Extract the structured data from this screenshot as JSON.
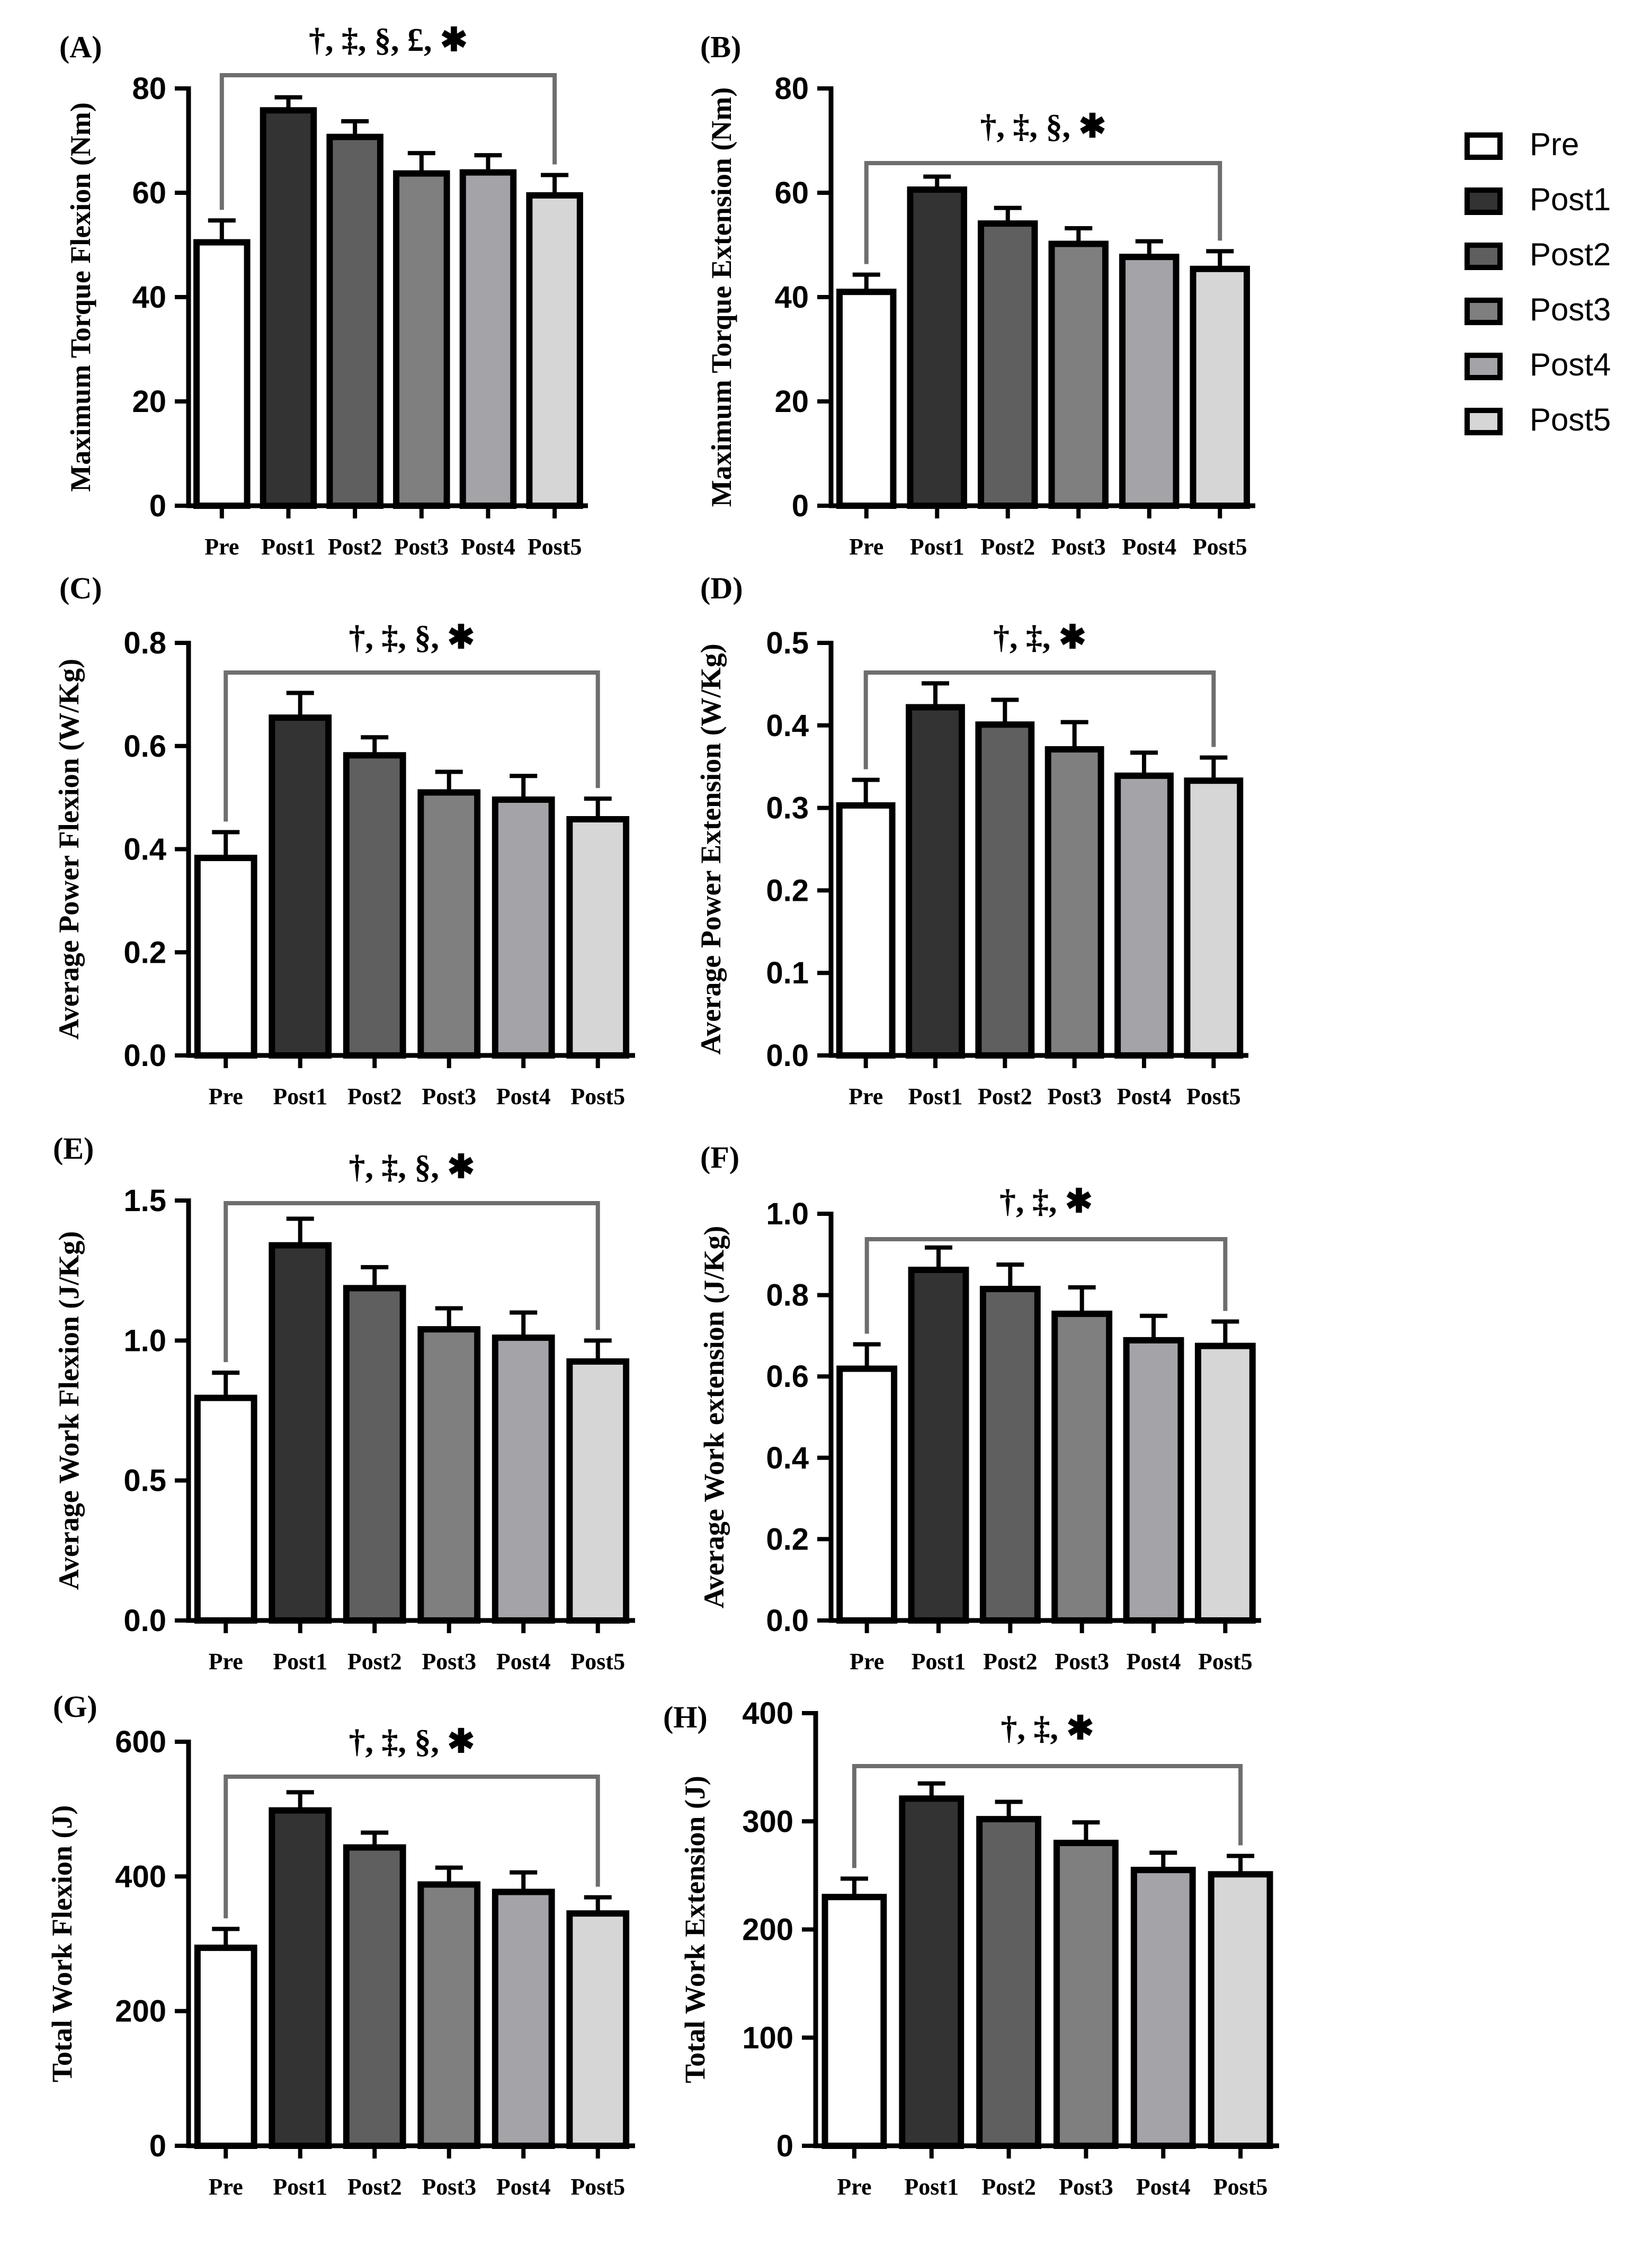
{
  "categories": [
    "Pre",
    "Post1",
    "Post2",
    "Post3",
    "Post4",
    "Post5"
  ],
  "colors": {
    "Pre": "#ffffff",
    "Post1": "#333333",
    "Post2": "#5f5f5f",
    "Post3": "#7f7f7f",
    "Post4": "#a3a3a8",
    "Post5": "#d6d6d6",
    "stroke": "#000000",
    "bracket": "#6e6e6e"
  },
  "legend": {
    "placement": "top-right",
    "entries": [
      "Pre",
      "Post1",
      "Post2",
      "Post3",
      "Post4",
      "Post5"
    ]
  },
  "chart_data": [
    {
      "type": "bar",
      "panel_label": "(A)",
      "ylabel": "Maximum Torque Flexion (Nm)",
      "ylim": [
        0,
        80
      ],
      "yticks": [
        "0",
        "20",
        "40",
        "60",
        "80"
      ],
      "yticks_values": [
        0,
        20,
        40,
        60,
        80
      ],
      "categories": [
        "Pre",
        "Post1",
        "Post2",
        "Post3",
        "Post4",
        "Post5"
      ],
      "values": [
        50.5,
        75.8,
        70.7,
        63.7,
        63.9,
        59.5
      ],
      "errors": [
        4.2,
        2.5,
        3.0,
        3.9,
        3.3,
        3.9
      ],
      "significance": "†, ‡, §, £, ✱",
      "bracket_from": "Pre",
      "bracket_to": "Post5"
    },
    {
      "type": "bar",
      "panel_label": "(B)",
      "ylabel": "Maximum Torque Extension (Nm)",
      "ylim": [
        0,
        80
      ],
      "yticks": [
        "0",
        "20",
        "40",
        "60",
        "80"
      ],
      "yticks_values": [
        0,
        20,
        40,
        60,
        80
      ],
      "categories": [
        "Pre",
        "Post1",
        "Post2",
        "Post3",
        "Post4",
        "Post5"
      ],
      "values": [
        41.0,
        60.6,
        54.1,
        50.2,
        47.7,
        45.4
      ],
      "errors": [
        3.3,
        2.5,
        3.0,
        3.0,
        3.0,
        3.4
      ],
      "significance": "†, ‡, §, ✱",
      "bracket_from": "Pre",
      "bracket_to": "Post5"
    },
    {
      "type": "bar",
      "panel_label": "(C)",
      "ylabel": "Average Power Flexion (W/Kg)",
      "ylim": [
        0,
        0.8
      ],
      "yticks": [
        "0.0",
        "0.2",
        "0.4",
        "0.6",
        "0.8"
      ],
      "yticks_values": [
        0,
        0.2,
        0.4,
        0.6,
        0.8
      ],
      "categories": [
        "Pre",
        "Post1",
        "Post2",
        "Post3",
        "Post4",
        "Post5"
      ],
      "values": [
        0.383,
        0.655,
        0.582,
        0.51,
        0.496,
        0.458
      ],
      "errors": [
        0.05,
        0.048,
        0.035,
        0.04,
        0.046,
        0.04
      ],
      "significance": "†, ‡, §, ✱",
      "bracket_from": "Pre",
      "bracket_to": "Post5"
    },
    {
      "type": "bar",
      "panel_label": "(D)",
      "ylabel": "Average Power Extension (W/Kg)",
      "ylim": [
        0,
        0.5
      ],
      "yticks": [
        "0.0",
        "0.1",
        "0.2",
        "0.3",
        "0.4",
        "0.5"
      ],
      "yticks_values": [
        0,
        0.1,
        0.2,
        0.3,
        0.4,
        0.5
      ],
      "categories": [
        "Pre",
        "Post1",
        "Post2",
        "Post3",
        "Post4",
        "Post5"
      ],
      "values": [
        0.303,
        0.422,
        0.401,
        0.371,
        0.339,
        0.333
      ],
      "errors": [
        0.031,
        0.029,
        0.03,
        0.033,
        0.028,
        0.028
      ],
      "significance": "†, ‡, ✱",
      "bracket_from": "Pre",
      "bracket_to": "Post5"
    },
    {
      "type": "bar",
      "panel_label": "(E)",
      "ylabel": "Average Work Flexion (J/Kg)",
      "ylim": [
        0,
        1.5
      ],
      "yticks": [
        "0.0",
        "0.5",
        "1.0",
        "1.5"
      ],
      "yticks_values": [
        0,
        0.5,
        1.0,
        1.5
      ],
      "categories": [
        "Pre",
        "Post1",
        "Post2",
        "Post3",
        "Post4",
        "Post5"
      ],
      "values": [
        0.795,
        1.34,
        1.187,
        1.04,
        1.01,
        0.925
      ],
      "errors": [
        0.09,
        0.095,
        0.075,
        0.075,
        0.09,
        0.075
      ],
      "significance": "†, ‡, §, ✱",
      "bracket_from": "Pre",
      "bracket_to": "Post5"
    },
    {
      "type": "bar",
      "panel_label": "(F)",
      "ylabel": "Average Work extension (J/Kg)",
      "ylim": [
        0,
        1.0
      ],
      "yticks": [
        "0.0",
        "0.2",
        "0.4",
        "0.6",
        "0.8",
        "1.0"
      ],
      "yticks_values": [
        0,
        0.2,
        0.4,
        0.6,
        0.8,
        1.0
      ],
      "categories": [
        "Pre",
        "Post1",
        "Post2",
        "Post3",
        "Post4",
        "Post5"
      ],
      "values": [
        0.619,
        0.862,
        0.815,
        0.754,
        0.689,
        0.675
      ],
      "errors": [
        0.06,
        0.055,
        0.06,
        0.065,
        0.06,
        0.06
      ],
      "significance": "†, ‡, ✱",
      "bracket_from": "Pre",
      "bracket_to": "Post5"
    },
    {
      "type": "bar",
      "panel_label": "(G)",
      "ylabel": "Total Work Flexion (J)",
      "ylim": [
        0,
        600
      ],
      "yticks": [
        "0",
        "200",
        "400",
        "600"
      ],
      "yticks_values": [
        0,
        200,
        400,
        600
      ],
      "categories": [
        "Pre",
        "Post1",
        "Post2",
        "Post3",
        "Post4",
        "Post5"
      ],
      "values": [
        294,
        498,
        443,
        388,
        377,
        345
      ],
      "errors": [
        28,
        27,
        22,
        25,
        29,
        24
      ],
      "significance": "†, ‡, §, ✱",
      "bracket_from": "Pre",
      "bracket_to": "Post5"
    },
    {
      "type": "bar",
      "panel_label": "(H)",
      "ylabel": "Total Work Extension (J)",
      "ylim": [
        0,
        400
      ],
      "yticks": [
        "0",
        "100",
        "200",
        "300",
        "400"
      ],
      "yticks_values": [
        0,
        100,
        200,
        300,
        400
      ],
      "categories": [
        "Pre",
        "Post1",
        "Post2",
        "Post3",
        "Post4",
        "Post5"
      ],
      "values": [
        230,
        321,
        302,
        280,
        255,
        251
      ],
      "errors": [
        17,
        14,
        16,
        19,
        16,
        17
      ],
      "significance": "†, ‡, ✱",
      "bracket_from": "Pre",
      "bracket_to": "Post5"
    }
  ]
}
